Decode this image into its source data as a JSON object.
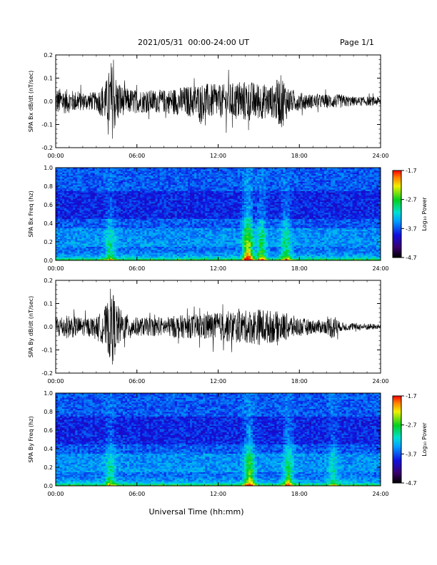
{
  "header": {
    "title": "2021/05/31  00:00-24:00 UT",
    "page": "Page 1/1"
  },
  "xlabel": "Universal Time (hh:mm)",
  "chart_data": [
    {
      "type": "line",
      "ylabel": "SPA Bx dB/dt (nT/sec)",
      "ylim": [
        -0.2,
        0.2
      ],
      "yticks": [
        "0.2",
        "0.1",
        "0.0",
        "-0.1",
        "-0.2"
      ],
      "xlim": [
        0,
        24
      ],
      "xticks": [
        "00:00",
        "06:00",
        "12:00",
        "18:00",
        "24:00"
      ],
      "envelope": {
        "hours": [
          0,
          1,
          2,
          3,
          3.8,
          4.1,
          4.5,
          5,
          6,
          7,
          8,
          9,
          10,
          11,
          12,
          13,
          14,
          15,
          16,
          16.7,
          17.3,
          18,
          19,
          20,
          21,
          22,
          23,
          24
        ],
        "amplitude": [
          0.06,
          0.05,
          0.04,
          0.04,
          0.1,
          0.18,
          0.1,
          0.06,
          0.05,
          0.05,
          0.05,
          0.06,
          0.07,
          0.08,
          0.07,
          0.08,
          0.09,
          0.08,
          0.07,
          0.12,
          0.05,
          0.04,
          0.03,
          0.03,
          0.03,
          0.02,
          0.02,
          0.02
        ]
      }
    },
    {
      "type": "heatmap",
      "ylabel": "SPA Bx Freq (hz)",
      "ylim": [
        0.0,
        1.0
      ],
      "yticks": [
        "1.0",
        "0.8",
        "0.6",
        "0.4",
        "0.2",
        "0.0"
      ],
      "xlim": [
        0,
        24
      ],
      "xticks": [
        "00:00",
        "06:00",
        "12:00",
        "18:00",
        "24:00"
      ],
      "colorbar": {
        "label": "Log₁₀ Power",
        "range": [
          -4.7,
          -1.7
        ],
        "ticks": [
          "-1.7",
          "-2.7",
          "-3.7",
          "-4.7"
        ]
      }
    },
    {
      "type": "line",
      "ylabel": "SPA By dB/dt (nT/sec)",
      "ylim": [
        -0.2,
        0.2
      ],
      "yticks": [
        "0.2",
        "0.1",
        "0.0",
        "-0.1",
        "-0.2"
      ],
      "xlim": [
        0,
        24
      ],
      "xticks": [
        "00:00",
        "06:00",
        "12:00",
        "18:00",
        "24:00"
      ],
      "envelope": {
        "hours": [
          0,
          1,
          2,
          3,
          3.8,
          4.1,
          4.5,
          5,
          6,
          7,
          8,
          9,
          10,
          11,
          12,
          13,
          14,
          15,
          16,
          17,
          18,
          19,
          20,
          20.5,
          21,
          22,
          23,
          24
        ],
        "amplitude": [
          0.05,
          0.05,
          0.04,
          0.04,
          0.1,
          0.18,
          0.1,
          0.06,
          0.04,
          0.04,
          0.04,
          0.05,
          0.05,
          0.06,
          0.06,
          0.07,
          0.07,
          0.08,
          0.07,
          0.06,
          0.04,
          0.03,
          0.03,
          0.06,
          0.02,
          0.015,
          0.015,
          0.01
        ]
      }
    },
    {
      "type": "heatmap",
      "ylabel": "SPA By Freq (hz)",
      "ylim": [
        0.0,
        1.0
      ],
      "yticks": [
        "1.0",
        "0.8",
        "0.6",
        "0.4",
        "0.2",
        "0.0"
      ],
      "xlim": [
        0,
        24
      ],
      "xticks": [
        "00:00",
        "06:00",
        "12:00",
        "18:00",
        "24:00"
      ],
      "colorbar": {
        "label": "Log₁₀ Power",
        "range": [
          -4.7,
          -1.7
        ],
        "ticks": [
          "-1.7",
          "-2.7",
          "-3.7",
          "-4.7"
        ]
      }
    }
  ]
}
